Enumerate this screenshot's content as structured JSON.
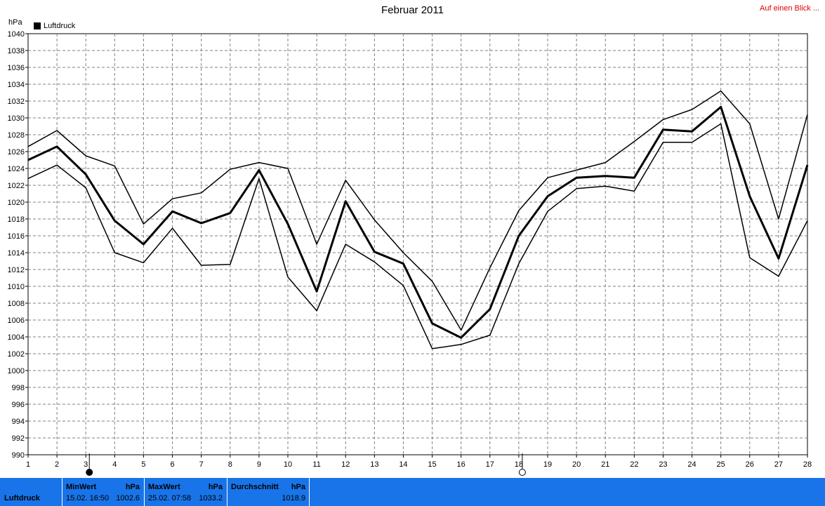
{
  "header": {
    "title": "Februar 2011",
    "link_label": "Auf einen Blick ..."
  },
  "chart_data": {
    "type": "line",
    "title": "Februar 2011",
    "ylabel": "hPa",
    "ylim": [
      990,
      1040
    ],
    "ytick_step": 2,
    "x": [
      1,
      2,
      3,
      4,
      5,
      6,
      7,
      8,
      9,
      10,
      11,
      12,
      13,
      14,
      15,
      16,
      17,
      18,
      19,
      20,
      21,
      22,
      23,
      24,
      25,
      26,
      27,
      28
    ],
    "grid": true,
    "legend": [
      "Luftdruck"
    ],
    "legend_position": "top-left",
    "series": [
      {
        "name": "Luftdruck",
        "role": "max",
        "values": [
          1026.6,
          1028.5,
          1025.5,
          1024.3,
          1017.4,
          1020.4,
          1021.1,
          1023.9,
          1024.7,
          1024.0,
          1015.0,
          1022.6,
          1017.9,
          1014.0,
          1010.6,
          1004.8,
          1012.2,
          1019.0,
          1022.9,
          1023.8,
          1024.7,
          1027.2,
          1029.8,
          1031.0,
          1033.2,
          1029.3,
          1018.0,
          1030.4
        ]
      },
      {
        "name": "Luftdruck",
        "role": "mean",
        "values": [
          1025.0,
          1026.6,
          1023.3,
          1017.8,
          1015.0,
          1018.9,
          1017.5,
          1018.7,
          1023.8,
          1017.4,
          1009.4,
          1020.1,
          1014.1,
          1012.7,
          1005.6,
          1003.9,
          1007.3,
          1016.0,
          1020.7,
          1022.9,
          1023.1,
          1022.9,
          1028.6,
          1028.4,
          1031.3,
          1020.7,
          1013.3,
          1024.4
        ]
      },
      {
        "name": "Luftdruck",
        "role": "min",
        "values": [
          1022.8,
          1024.4,
          1021.7,
          1014.0,
          1012.8,
          1016.9,
          1012.5,
          1012.6,
          1022.8,
          1011.1,
          1007.1,
          1015.0,
          1012.9,
          1010.1,
          1002.6,
          1003.1,
          1004.2,
          1012.7,
          1018.9,
          1021.6,
          1021.9,
          1021.3,
          1027.1,
          1027.1,
          1029.3,
          1013.4,
          1011.2,
          1017.8
        ]
      }
    ],
    "markers": [
      {
        "x": 3,
        "kind": "full-moon-icon"
      },
      {
        "x": 18,
        "kind": "new-moon-icon"
      }
    ]
  },
  "legend": {
    "label": "Luftdruck",
    "unit": "hPa"
  },
  "footer": {
    "series_label": "Luftdruck",
    "min": {
      "header": "MinWert",
      "unit": "hPa",
      "when": "15.02.  16:50",
      "value": "1002.6"
    },
    "max": {
      "header": "MaxWert",
      "unit": "hPa",
      "when": "25.02.  07:58",
      "value": "1033.2"
    },
    "avg": {
      "header": "Durchschnitt",
      "unit": "hPa",
      "value": "1018.9"
    }
  },
  "colors": {
    "footer_bg": "#1874e8",
    "link": "#e00000",
    "grid": "#808080",
    "line": "#000000"
  }
}
